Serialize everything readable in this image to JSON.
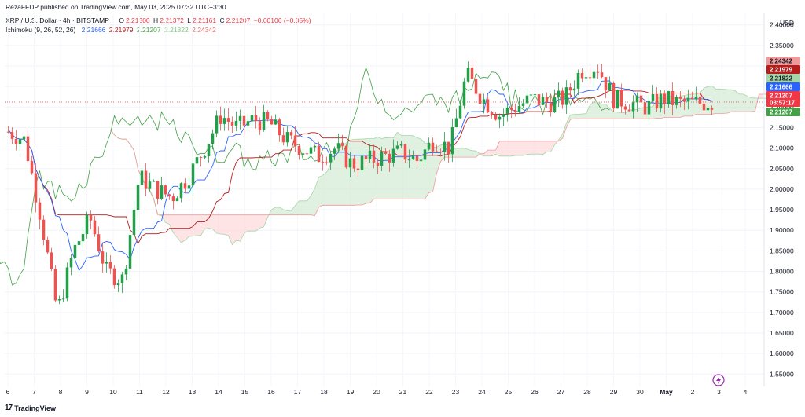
{
  "publisher": "RezaFFDP published on TradingView.com, May 03, 2025 07:32 UTC+3:30",
  "symbol": {
    "name": "XRP / U.S. Dollar · 4h · BITSTAMP",
    "o_label": "O",
    "o": "2.21300",
    "h_label": "H",
    "h": "2.21372",
    "l_label": "L",
    "l": "2.21161",
    "c_label": "C",
    "c": "2.21207",
    "change": "−0.00106 (−0.05%)"
  },
  "indicator": {
    "name": "Ichimoku (9, 26, 52, 26)",
    "values": [
      "2.21666",
      "2.21979",
      "2.21207",
      "2.21822",
      "2.24342"
    ],
    "colors": [
      "#2962ff",
      "#b71c1c",
      "#43a047",
      "#a5d6a7",
      "#ef9a9a"
    ]
  },
  "currency": "USD",
  "footer_brand": "TradingView",
  "footer_logo": "17",
  "price_badges": [
    {
      "value": "2.24342",
      "bg": "#ef9a9a",
      "fg": "#131722"
    },
    {
      "value": "2.21979",
      "bg": "#b71c1c",
      "fg": "#ffffff"
    },
    {
      "value": "2.21822",
      "bg": "#a5d6a7",
      "fg": "#131722"
    },
    {
      "value": "2.21666",
      "bg": "#2962ff",
      "fg": "#ffffff"
    },
    {
      "value": "2.21207",
      "bg": "#f23645",
      "fg": "#ffffff"
    },
    {
      "value": "03:57:17",
      "bg": "#f23645",
      "fg": "#ffffff"
    },
    {
      "value": "2.21207",
      "bg": "#43a047",
      "fg": "#ffffff"
    }
  ],
  "chart_data": {
    "type": "candlestick",
    "ylim": [
      1.52,
      2.43
    ],
    "yticks": [
      "2.40000",
      "2.35000",
      "2.30000",
      "2.25000",
      "2.20000",
      "2.15000",
      "2.10000",
      "2.05000",
      "2.00000",
      "1.95000",
      "1.90000",
      "1.85000",
      "1.80000",
      "1.75000",
      "1.70000",
      "1.65000",
      "1.60000",
      "1.55000"
    ],
    "xticks": [
      "6",
      "7",
      "8",
      "9",
      "10",
      "11",
      "12",
      "13",
      "14",
      "15",
      "16",
      "17",
      "18",
      "19",
      "20",
      "21",
      "22",
      "23",
      "24",
      "25",
      "26",
      "27",
      "28",
      "29",
      "30",
      "May",
      "2",
      "3",
      "4"
    ],
    "colors": {
      "up": "#26a69a",
      "up_body": "#22a049",
      "down": "#ef5350",
      "tenkan": "#2962ff",
      "kijun": "#b71c1c",
      "chikou": "#43a047",
      "cloud_bull": "#c8e6c9",
      "cloud_bear": "#ffcdd2"
    },
    "anchors": [
      [
        0,
        2.14
      ],
      [
        1,
        2.12
      ],
      [
        2,
        1.93
      ],
      [
        3,
        1.7
      ],
      [
        4,
        1.85
      ],
      [
        5,
        1.93
      ],
      [
        6,
        1.8
      ],
      [
        7,
        1.78
      ],
      [
        8,
        2.03
      ],
      [
        9,
        2.0
      ],
      [
        10,
        1.98
      ],
      [
        11,
        2.03
      ],
      [
        12,
        2.1
      ],
      [
        13,
        2.18
      ],
      [
        14,
        2.15
      ],
      [
        15,
        2.17
      ],
      [
        16,
        2.16
      ],
      [
        17,
        2.12
      ],
      [
        18,
        2.1
      ],
      [
        19,
        2.08
      ],
      [
        20,
        2.1
      ],
      [
        21,
        2.06
      ],
      [
        22,
        2.07
      ],
      [
        23,
        2.08
      ],
      [
        24,
        2.09
      ],
      [
        25,
        2.07
      ],
      [
        26,
        2.12
      ],
      [
        27,
        2.1
      ],
      [
        28,
        2.28
      ],
      [
        29,
        2.22
      ],
      [
        30,
        2.18
      ],
      [
        31,
        2.2
      ],
      [
        32,
        2.22
      ],
      [
        33,
        2.21
      ],
      [
        34,
        2.22
      ],
      [
        35,
        2.29
      ],
      [
        36,
        2.3
      ],
      [
        37,
        2.22
      ],
      [
        38,
        2.21
      ],
      [
        39,
        2.2
      ],
      [
        40,
        2.22
      ],
      [
        41,
        2.21
      ],
      [
        42,
        2.21
      ],
      [
        43,
        2.21
      ]
    ]
  }
}
